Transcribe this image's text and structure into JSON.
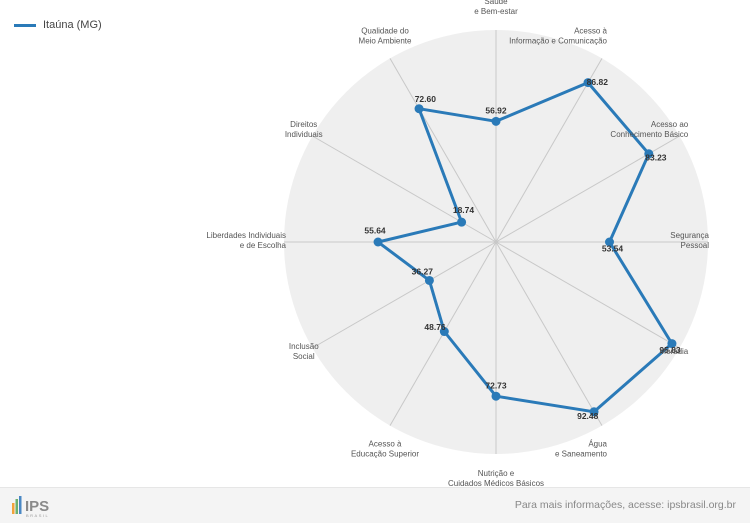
{
  "colors": {
    "series": "#2a7ab8",
    "disc": "#efefef",
    "grid": "#c8c8c8"
  },
  "chart_data": {
    "type": "radar",
    "legend_position": "top-left",
    "scale_max": 100,
    "series": [
      {
        "name": "Itaúna (MG)",
        "values": [
          56.92,
          86.82,
          83.23,
          53.54,
          95.83,
          92.48,
          72.73,
          48.76,
          36.27,
          55.64,
          18.74,
          72.6
        ]
      }
    ],
    "value_labels": [
      "56.92",
      "86.82",
      "83.23",
      "53.54",
      "95.83",
      "92.48",
      "72.73",
      "48.76",
      "36.27",
      "55.64",
      "18.74",
      "72.60"
    ],
    "categories": [
      [
        "Saúde",
        "e Bem-estar"
      ],
      [
        "Acesso à",
        "Informação e Comunicação"
      ],
      [
        "Acesso ao",
        "Conhecimento Básico"
      ],
      [
        "Segurança",
        "Pessoal"
      ],
      [
        "Moradia"
      ],
      [
        "Água",
        "e Saneamento"
      ],
      [
        "Nutrição e",
        "Cuidados Médicos Básicos"
      ],
      [
        "Acesso à",
        "Educação Superior"
      ],
      [
        "Inclusão",
        "Social"
      ],
      [
        "Liberdades Individuais",
        "e de Escolha"
      ],
      [
        "Direitos",
        "Individuais"
      ],
      [
        "Qualidade do",
        "Meio Ambiente"
      ]
    ]
  },
  "footer": {
    "brand": "IPS",
    "brand_sub": "BRASIL",
    "info_text": "Para mais informações, acesse: ipsbrasil.org.br"
  }
}
